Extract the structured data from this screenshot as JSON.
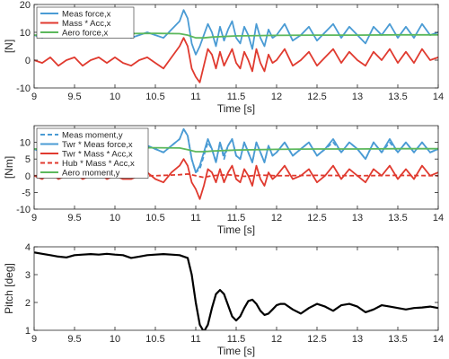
{
  "chart_data": [
    {
      "type": "line",
      "title": "",
      "xlabel": "Time [s]",
      "ylabel": "[N]",
      "xlim": [
        9,
        14
      ],
      "ylim": [
        -10,
        20
      ],
      "xticks": [
        9,
        9.5,
        10,
        10.5,
        11,
        11.5,
        12,
        12.5,
        13,
        13.5,
        14
      ],
      "xtick_labels": [
        "9",
        "9.5",
        "10",
        "10.5",
        "11",
        "11.5",
        "12",
        "12.5",
        "13",
        "13.5",
        "14"
      ],
      "yticks": [
        -10,
        0,
        10,
        20
      ],
      "ytick_labels": [
        "-10",
        "0",
        "10",
        "20"
      ],
      "grid": false,
      "legend": "top-left",
      "series": [
        {
          "name": "Meas force,x",
          "color": "#4a9bd4",
          "dash": "solid",
          "x": [
            9.0,
            9.1,
            9.2,
            9.3,
            9.4,
            9.5,
            9.6,
            9.7,
            9.8,
            9.9,
            10.0,
            10.1,
            10.2,
            10.3,
            10.4,
            10.5,
            10.6,
            10.7,
            10.8,
            10.85,
            10.9,
            10.95,
            11.0,
            11.05,
            11.1,
            11.15,
            11.2,
            11.25,
            11.3,
            11.35,
            11.4,
            11.45,
            11.5,
            11.55,
            11.6,
            11.65,
            11.7,
            11.75,
            11.8,
            11.85,
            11.9,
            11.95,
            12.0,
            12.1,
            12.2,
            12.3,
            12.4,
            12.5,
            12.6,
            12.7,
            12.8,
            12.9,
            13.0,
            13.1,
            13.2,
            13.3,
            13.4,
            13.5,
            13.6,
            13.7,
            13.8,
            13.9,
            14.0
          ],
          "y": [
            9,
            8,
            10,
            9,
            10,
            8,
            10,
            9,
            9,
            10,
            9,
            10,
            8,
            9,
            10,
            9,
            8,
            11,
            14,
            18,
            15,
            6,
            2,
            5,
            9,
            13,
            10,
            5,
            12,
            7,
            11,
            14,
            8,
            6,
            12,
            9,
            4,
            13,
            8,
            5,
            11,
            8,
            9,
            13,
            7,
            9,
            12,
            7,
            10,
            13,
            8,
            12,
            9,
            6,
            12,
            9,
            13,
            8,
            12,
            8,
            13,
            9,
            10
          ]
        },
        {
          "name": "Mass * Acc,x",
          "color": "#e03a2f",
          "dash": "solid",
          "x": [
            9.0,
            9.1,
            9.2,
            9.3,
            9.4,
            9.5,
            9.6,
            9.7,
            9.8,
            9.9,
            10.0,
            10.1,
            10.2,
            10.3,
            10.4,
            10.5,
            10.6,
            10.7,
            10.8,
            10.85,
            10.9,
            10.95,
            11.0,
            11.05,
            11.1,
            11.15,
            11.2,
            11.25,
            11.3,
            11.35,
            11.4,
            11.45,
            11.5,
            11.55,
            11.6,
            11.65,
            11.7,
            11.75,
            11.8,
            11.85,
            11.9,
            11.95,
            12.0,
            12.1,
            12.2,
            12.3,
            12.4,
            12.5,
            12.6,
            12.7,
            12.8,
            12.9,
            13.0,
            13.1,
            13.2,
            13.3,
            13.4,
            13.5,
            13.6,
            13.7,
            13.8,
            13.9,
            14.0
          ],
          "y": [
            0,
            -1,
            1,
            -2,
            0,
            1,
            -2,
            0,
            1,
            -1,
            1,
            -1,
            -2,
            0,
            1,
            -1,
            -3,
            1,
            5,
            8,
            5,
            -3,
            -6,
            -8,
            -2,
            4,
            2,
            -3,
            3,
            -2,
            1,
            4,
            -1,
            -3,
            3,
            0,
            -4,
            4,
            -1,
            -4,
            2,
            -1,
            0,
            4,
            -2,
            0,
            3,
            -2,
            1,
            4,
            -1,
            3,
            0,
            -2,
            3,
            0,
            4,
            -1,
            3,
            -1,
            4,
            0,
            1
          ]
        },
        {
          "name": "Aero force,x",
          "color": "#5cb85c",
          "dash": "solid",
          "x": [
            9.0,
            9.5,
            10.0,
            10.5,
            10.8,
            10.9,
            11.0,
            11.1,
            11.2,
            11.5,
            12.0,
            12.5,
            13.0,
            13.5,
            14.0
          ],
          "y": [
            9,
            9.3,
            9.5,
            9.6,
            9.5,
            9,
            8,
            8,
            8.3,
            8.7,
            8.9,
            9,
            9,
            9.1,
            9.1
          ]
        }
      ]
    },
    {
      "type": "line",
      "title": "",
      "xlabel": "Time [s]",
      "ylabel": "[Nm]",
      "xlim": [
        9,
        14
      ],
      "ylim": [
        -10,
        15
      ],
      "xticks": [
        9,
        9.5,
        10,
        10.5,
        11,
        11.5,
        12,
        12.5,
        13,
        13.5,
        14
      ],
      "xtick_labels": [
        "9",
        "9.5",
        "10",
        "10.5",
        "11",
        "11.5",
        "12",
        "12.5",
        "13",
        "13.5",
        "14"
      ],
      "yticks": [
        -10,
        -5,
        0,
        5,
        10
      ],
      "ytick_labels": [
        "-10",
        "-5",
        "0",
        "5",
        "10"
      ],
      "grid": false,
      "legend": "top-left",
      "series": [
        {
          "name": "Meas moment,y",
          "color": "#4a9bd4",
          "dash": "dashed",
          "x": [
            9.0,
            9.1,
            9.2,
            9.3,
            9.4,
            9.5,
            9.6,
            9.7,
            9.8,
            9.9,
            10.0,
            10.1,
            10.2,
            10.3,
            10.4,
            10.5,
            10.6,
            10.7,
            10.8,
            10.85,
            10.9,
            10.95,
            11.0,
            11.05,
            11.1,
            11.15,
            11.2,
            11.25,
            11.3,
            11.35,
            11.4,
            11.45,
            11.5,
            11.55,
            11.6,
            11.65,
            11.7,
            11.75,
            11.8,
            11.85,
            11.9,
            11.95,
            12.0,
            12.1,
            12.2,
            12.3,
            12.4,
            12.5,
            12.6,
            12.7,
            12.8,
            12.9,
            13.0,
            13.1,
            13.2,
            13.3,
            13.4,
            13.5,
            13.6,
            13.7,
            13.8,
            13.9,
            14.0
          ],
          "y": [
            8,
            7,
            9,
            8,
            9,
            7,
            9,
            8,
            8,
            9,
            8,
            9,
            7,
            8,
            9,
            8,
            7,
            9,
            11,
            14,
            12,
            5,
            1,
            2,
            6,
            10,
            8,
            4,
            10,
            5,
            9,
            11,
            6,
            5,
            10,
            7,
            4,
            10,
            7,
            4,
            9,
            6,
            7,
            10,
            6,
            8,
            10,
            6,
            8,
            10,
            7,
            10,
            8,
            5,
            10,
            7,
            10,
            7,
            10,
            7,
            10,
            7,
            8
          ]
        },
        {
          "name": "Twr * Meas force,x",
          "color": "#4a9bd4",
          "dash": "solid",
          "x": [
            9.0,
            9.1,
            9.2,
            9.3,
            9.4,
            9.5,
            9.6,
            9.7,
            9.8,
            9.9,
            10.0,
            10.1,
            10.2,
            10.3,
            10.4,
            10.5,
            10.6,
            10.7,
            10.8,
            10.85,
            10.9,
            10.95,
            11.0,
            11.05,
            11.1,
            11.15,
            11.2,
            11.25,
            11.3,
            11.35,
            11.4,
            11.45,
            11.5,
            11.55,
            11.6,
            11.65,
            11.7,
            11.75,
            11.8,
            11.85,
            11.9,
            11.95,
            12.0,
            12.1,
            12.2,
            12.3,
            12.4,
            12.5,
            12.6,
            12.7,
            12.8,
            12.9,
            13.0,
            13.1,
            13.2,
            13.3,
            13.4,
            13.5,
            13.6,
            13.7,
            13.8,
            13.9,
            14.0
          ],
          "y": [
            8,
            7,
            9,
            8,
            9,
            7,
            9,
            8,
            8,
            9,
            8,
            9,
            7,
            8,
            9,
            8,
            7,
            9,
            11,
            14,
            12,
            5,
            1,
            3,
            7,
            11,
            8,
            4,
            10,
            6,
            9,
            11,
            6,
            5,
            10,
            7,
            4,
            10,
            7,
            4,
            9,
            6,
            7,
            10,
            6,
            8,
            10,
            6,
            8,
            11,
            7,
            10,
            8,
            5,
            10,
            7,
            11,
            7,
            10,
            7,
            10,
            7,
            8
          ]
        },
        {
          "name": "Twr * Mass * Acc,x",
          "color": "#e03a2f",
          "dash": "solid",
          "x": [
            9.0,
            9.1,
            9.2,
            9.3,
            9.4,
            9.5,
            9.6,
            9.7,
            9.8,
            9.9,
            10.0,
            10.1,
            10.2,
            10.3,
            10.4,
            10.5,
            10.6,
            10.7,
            10.8,
            10.85,
            10.9,
            10.95,
            11.0,
            11.05,
            11.1,
            11.15,
            11.2,
            11.25,
            11.3,
            11.35,
            11.4,
            11.45,
            11.5,
            11.55,
            11.6,
            11.65,
            11.7,
            11.75,
            11.8,
            11.85,
            11.9,
            11.95,
            12.0,
            12.1,
            12.2,
            12.3,
            12.4,
            12.5,
            12.6,
            12.7,
            12.8,
            12.9,
            13.0,
            13.1,
            13.2,
            13.3,
            13.4,
            13.5,
            13.6,
            13.7,
            13.8,
            13.9,
            14.0
          ],
          "y": [
            0,
            -1,
            1,
            -1,
            0,
            1,
            -1,
            0,
            1,
            -1,
            0,
            -1,
            -1,
            0,
            1,
            -1,
            -2,
            1,
            3,
            5,
            3,
            -2,
            -4,
            -7,
            -3,
            2,
            1,
            -2,
            2,
            -2,
            1,
            3,
            -1,
            -2,
            2,
            0,
            -3,
            3,
            -1,
            -3,
            1,
            -1,
            0,
            3,
            -1,
            0,
            2,
            -2,
            0,
            3,
            -1,
            2,
            0,
            -2,
            2,
            0,
            3,
            -1,
            2,
            -1,
            3,
            0,
            1
          ]
        },
        {
          "name": "Hub * Mass * Acc,x",
          "color": "#e03a2f",
          "dash": "dashed",
          "x": [
            9.0,
            9.5,
            10.0,
            10.5,
            10.8,
            10.9,
            11.0,
            11.1,
            11.2,
            11.4,
            11.6,
            11.8,
            12.0,
            12.5,
            13.0,
            13.5,
            14.0
          ],
          "y": [
            0,
            0,
            0,
            0,
            0.3,
            0.5,
            0,
            -0.5,
            0,
            0.3,
            -0.2,
            0.2,
            0,
            0.1,
            0,
            0.1,
            0
          ]
        },
        {
          "name": "Aero moment,y",
          "color": "#5cb85c",
          "dash": "solid",
          "x": [
            9.0,
            9.5,
            10.0,
            10.5,
            10.8,
            10.9,
            11.0,
            11.1,
            11.2,
            11.5,
            12.0,
            12.5,
            13.0,
            13.5,
            14.0
          ],
          "y": [
            8,
            8.2,
            8.4,
            8.4,
            8.3,
            7.8,
            7.2,
            7.2,
            7.4,
            7.7,
            7.9,
            8,
            8,
            8.1,
            8.1
          ]
        }
      ]
    },
    {
      "type": "line",
      "title": "",
      "xlabel": "Time [s]",
      "ylabel": "Pitch [deg]",
      "xlim": [
        9,
        14
      ],
      "ylim": [
        1,
        4
      ],
      "xticks": [
        9,
        9.5,
        10,
        10.5,
        11,
        11.5,
        12,
        12.5,
        13,
        13.5,
        14
      ],
      "xtick_labels": [
        "9",
        "9.5",
        "10",
        "10.5",
        "11",
        "11.5",
        "12",
        "12.5",
        "13",
        "13.5",
        "14"
      ],
      "yticks": [
        1,
        2,
        3,
        4
      ],
      "ytick_labels": [
        "1",
        "2",
        "3",
        "4"
      ],
      "grid": false,
      "series": [
        {
          "color": "#000000",
          "dash": "solid",
          "x": [
            9.0,
            9.1,
            9.2,
            9.3,
            9.4,
            9.5,
            9.6,
            9.7,
            9.8,
            9.9,
            10.0,
            10.1,
            10.2,
            10.3,
            10.4,
            10.5,
            10.6,
            10.7,
            10.8,
            10.9,
            10.95,
            11.0,
            11.05,
            11.1,
            11.15,
            11.2,
            11.25,
            11.3,
            11.35,
            11.4,
            11.45,
            11.5,
            11.55,
            11.6,
            11.65,
            11.7,
            11.75,
            11.8,
            11.85,
            11.9,
            11.95,
            12.0,
            12.05,
            12.1,
            12.2,
            12.3,
            12.4,
            12.5,
            12.6,
            12.7,
            12.8,
            12.9,
            13.0,
            13.1,
            13.2,
            13.3,
            13.4,
            13.5,
            13.6,
            13.7,
            13.8,
            13.9,
            14.0
          ],
          "y": [
            3.8,
            3.75,
            3.7,
            3.65,
            3.62,
            3.7,
            3.72,
            3.74,
            3.72,
            3.75,
            3.72,
            3.7,
            3.6,
            3.65,
            3.7,
            3.72,
            3.74,
            3.72,
            3.7,
            3.6,
            3.0,
            2.0,
            1.2,
            0.95,
            1.2,
            1.8,
            2.3,
            2.45,
            2.3,
            1.9,
            1.5,
            1.35,
            1.5,
            1.8,
            2.05,
            2.1,
            1.95,
            1.7,
            1.55,
            1.6,
            1.75,
            1.9,
            1.95,
            1.95,
            1.75,
            1.6,
            1.8,
            1.95,
            1.85,
            1.7,
            1.9,
            1.95,
            1.85,
            1.65,
            1.75,
            1.9,
            1.85,
            1.8,
            1.75,
            1.8,
            1.82,
            1.85,
            1.8
          ]
        }
      ]
    }
  ]
}
